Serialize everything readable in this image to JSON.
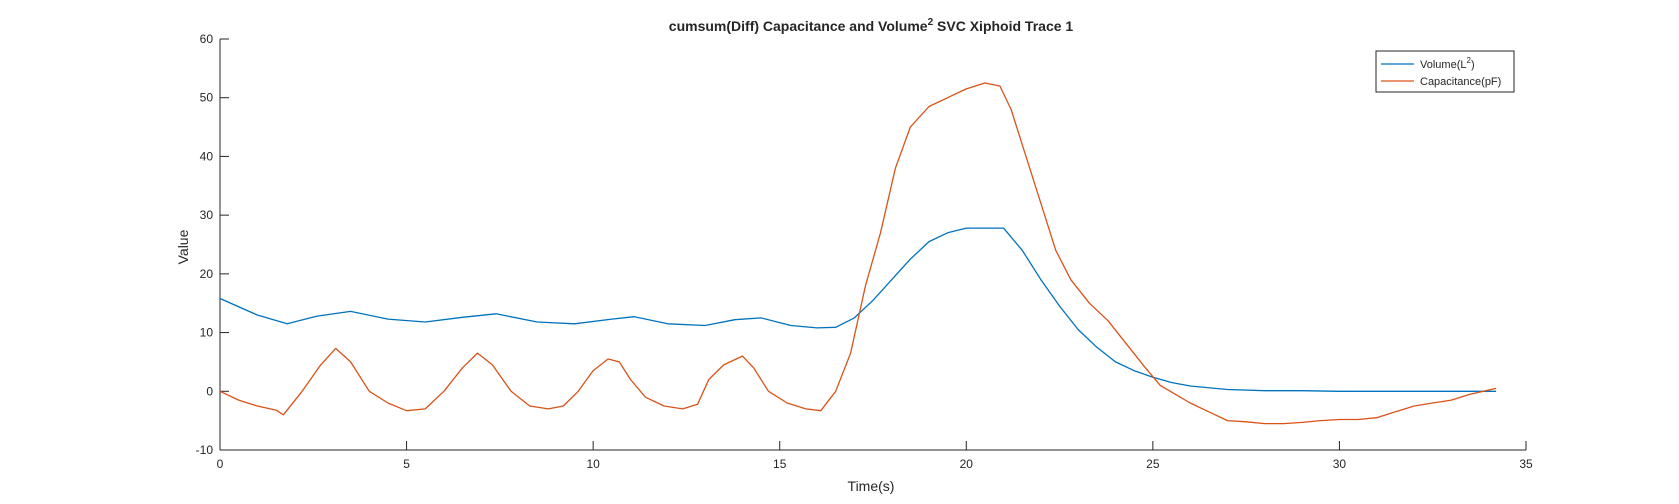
{
  "chart_data": {
    "type": "line",
    "title": {
      "prefix": "cumsum(Diff) Capacitance and Volume",
      "superscript": "2",
      "suffix": " SVC Xiphoid Trace 1"
    },
    "xlabel": "Time(s)",
    "ylabel": "Value",
    "xlim": [
      0,
      35
    ],
    "ylim": [
      -10,
      60
    ],
    "xticks": [
      0,
      5,
      10,
      15,
      20,
      25,
      30,
      35
    ],
    "yticks": [
      -10,
      0,
      10,
      20,
      30,
      40,
      50,
      60
    ],
    "grid": false,
    "legend": {
      "position": "top-right",
      "entries": [
        {
          "series": "volume",
          "label_prefix": "Volume(L",
          "label_sup": "2",
          "label_suffix": ")"
        },
        {
          "series": "capacitance",
          "label_prefix": "Capacitance(pF)",
          "label_sup": "",
          "label_suffix": ""
        }
      ]
    },
    "series": [
      {
        "id": "volume",
        "name": "Volume(L^2)",
        "color": "#0072BD",
        "x": [
          0,
          1,
          1.8,
          2.6,
          3.5,
          4.5,
          5.5,
          6.5,
          7.4,
          8.5,
          9.5,
          10.5,
          11.1,
          12,
          13,
          13.8,
          14.5,
          15.3,
          16,
          16.5,
          17,
          17.5,
          18,
          18.5,
          19,
          19.5,
          20,
          20.5,
          21,
          21.5,
          22,
          22.5,
          23,
          23.5,
          24,
          24.5,
          25,
          25.5,
          26,
          27,
          28,
          29,
          30,
          31,
          32,
          33,
          34.2
        ],
        "y": [
          15.8,
          13,
          11.5,
          12.8,
          13.6,
          12.3,
          11.8,
          12.6,
          13.2,
          11.8,
          11.5,
          12.3,
          12.7,
          11.5,
          11.2,
          12.2,
          12.5,
          11.2,
          10.8,
          10.9,
          12.5,
          15.5,
          19,
          22.5,
          25.5,
          27,
          27.8,
          27.8,
          27.8,
          24,
          19,
          14.5,
          10.5,
          7.5,
          5,
          3.5,
          2.4,
          1.5,
          0.9,
          0.3,
          0.1,
          0.1,
          0,
          0,
          0,
          0,
          0
        ]
      },
      {
        "id": "capacitance",
        "name": "Capacitance(pF)",
        "color": "#D95319",
        "x": [
          0,
          0.5,
          1,
          1.5,
          1.7,
          2.2,
          2.7,
          3.1,
          3.5,
          4,
          4.5,
          5,
          5.5,
          6,
          6.5,
          6.9,
          7.3,
          7.8,
          8.3,
          8.8,
          9.2,
          9.6,
          10,
          10.4,
          10.7,
          11,
          11.4,
          11.9,
          12.4,
          12.8,
          13.1,
          13.5,
          14,
          14.3,
          14.7,
          15.2,
          15.7,
          16.1,
          16.5,
          16.9,
          17.3,
          17.7,
          18.1,
          18.5,
          19,
          19.5,
          20,
          20.5,
          20.9,
          21.2,
          21.6,
          22,
          22.4,
          22.8,
          23.3,
          23.8,
          24.3,
          24.8,
          25.2,
          25.6,
          26,
          26.5,
          27,
          27.5,
          28,
          28.5,
          29,
          29.5,
          30,
          30.5,
          31,
          31.5,
          32,
          32.5,
          33,
          33.5,
          34.2
        ],
        "y": [
          0,
          -1.5,
          -2.5,
          -3.2,
          -4,
          0,
          4.5,
          7.3,
          5,
          0,
          -2,
          -3.3,
          -3,
          0,
          4,
          6.5,
          4.5,
          0,
          -2.5,
          -3,
          -2.5,
          0,
          3.5,
          5.5,
          5,
          2,
          -1,
          -2.5,
          -3,
          -2.2,
          2,
          4.5,
          6,
          4,
          0,
          -2,
          -3,
          -3.3,
          0,
          6.5,
          18,
          27,
          38,
          45,
          48.5,
          50,
          51.5,
          52.5,
          52,
          48,
          40,
          32,
          24,
          19,
          15,
          12,
          8,
          4,
          1,
          -0.5,
          -2,
          -3.5,
          -5,
          -5.2,
          -5.5,
          -5.5,
          -5.3,
          -5,
          -4.8,
          -4.8,
          -4.5,
          -3.5,
          -2.5,
          -2,
          -1.5,
          -0.5,
          0.5
        ]
      }
    ]
  }
}
